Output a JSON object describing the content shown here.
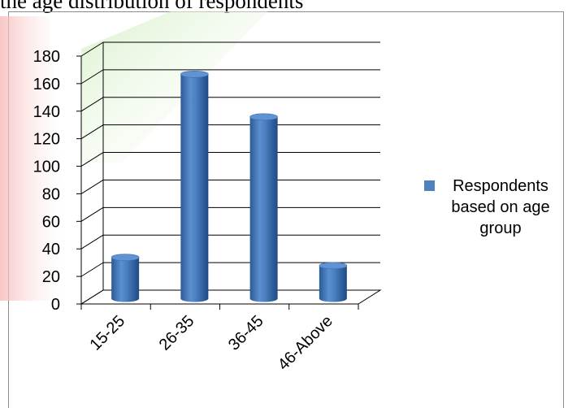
{
  "caption": "the age distribution of respondents",
  "chart_data": {
    "type": "bar",
    "title": "",
    "xlabel": "",
    "ylabel": "",
    "categories": [
      "15-25",
      "26-35",
      "36-45",
      "46-Above"
    ],
    "series": [
      {
        "name": "Respondents based on age group",
        "values": [
          30,
          163,
          132,
          24
        ]
      }
    ],
    "ylim": [
      0,
      180
    ],
    "yticks": [
      0,
      20,
      40,
      60,
      80,
      100,
      120,
      140,
      160,
      180
    ],
    "grid": true,
    "legend_position": "right",
    "style": "3d-cylinder",
    "colors": {
      "bar": "#4f81bd",
      "grid": "#000000"
    }
  },
  "legend": {
    "label": "Respondents\nbased on age\ngroup"
  }
}
